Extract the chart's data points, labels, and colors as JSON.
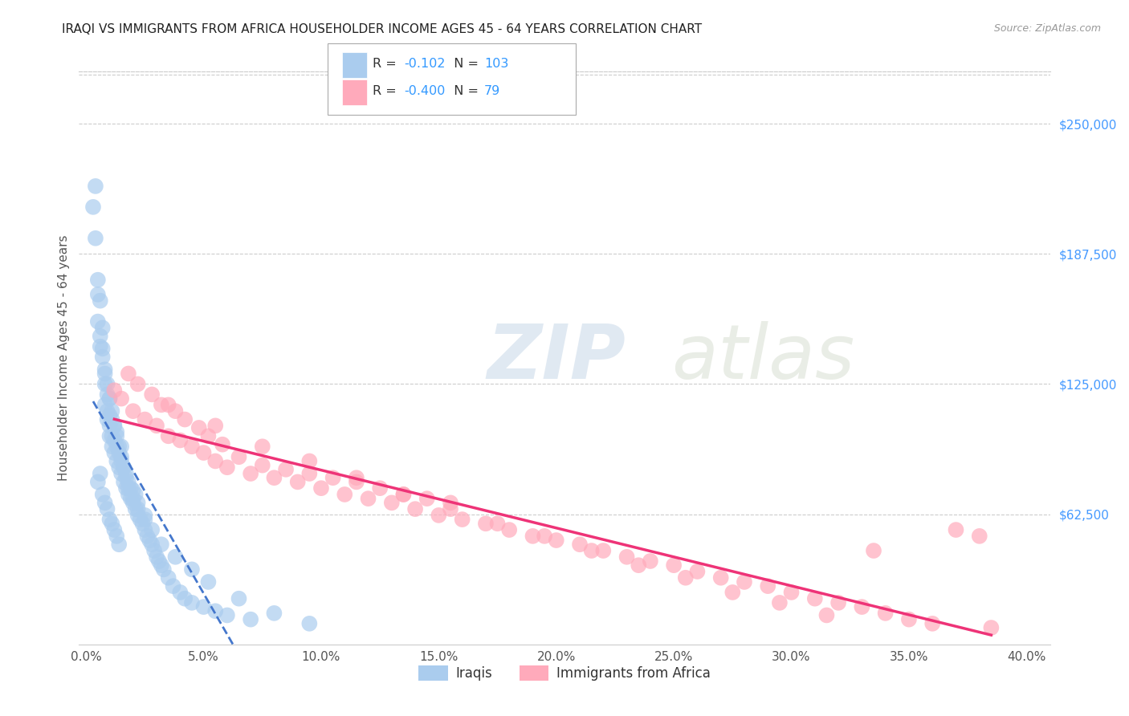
{
  "title": "IRAQI VS IMMIGRANTS FROM AFRICA HOUSEHOLDER INCOME AGES 45 - 64 YEARS CORRELATION CHART",
  "source": "Source: ZipAtlas.com",
  "ylabel": "Householder Income Ages 45 - 64 years",
  "ylabel_ticks": [
    "$62,500",
    "$125,000",
    "$187,500",
    "$250,000"
  ],
  "ylabel_vals": [
    62500,
    125000,
    187500,
    250000
  ],
  "ylim": [
    0,
    275000
  ],
  "xlim": [
    -0.3,
    41
  ],
  "xlabel_vals": [
    0.0,
    5.0,
    10.0,
    15.0,
    20.0,
    25.0,
    30.0,
    35.0,
    40.0
  ],
  "legend_labels": [
    "Iraqis",
    "Immigrants from Africa"
  ],
  "iraqis_color": "#aaccee",
  "africa_color": "#ffaabb",
  "iraqis_line_color": "#4477cc",
  "africa_line_color": "#ee3377",
  "iraqis_R": "-0.102",
  "iraqis_N": "103",
  "africa_R": "-0.400",
  "africa_N": "79",
  "iraqis_x": [
    0.3,
    0.4,
    0.4,
    0.5,
    0.5,
    0.5,
    0.6,
    0.6,
    0.6,
    0.7,
    0.7,
    0.7,
    0.8,
    0.8,
    0.8,
    0.9,
    0.9,
    0.9,
    1.0,
    1.0,
    1.0,
    1.0,
    1.1,
    1.1,
    1.1,
    1.2,
    1.2,
    1.2,
    1.3,
    1.3,
    1.3,
    1.4,
    1.4,
    1.5,
    1.5,
    1.5,
    1.6,
    1.6,
    1.7,
    1.7,
    1.8,
    1.8,
    1.9,
    1.9,
    2.0,
    2.0,
    2.1,
    2.1,
    2.2,
    2.2,
    2.3,
    2.4,
    2.5,
    2.5,
    2.6,
    2.7,
    2.8,
    2.9,
    3.0,
    3.1,
    3.2,
    3.3,
    3.5,
    3.7,
    4.0,
    4.2,
    4.5,
    5.0,
    5.5,
    6.0,
    7.0,
    0.5,
    0.6,
    0.7,
    0.8,
    0.9,
    1.0,
    1.1,
    1.2,
    1.3,
    1.4,
    0.8,
    0.9,
    1.0,
    1.1,
    1.2,
    1.3,
    1.4,
    1.5,
    1.6,
    1.7,
    1.8,
    2.0,
    2.2,
    2.5,
    2.8,
    3.2,
    3.8,
    4.5,
    5.2,
    6.5,
    8.0,
    9.5
  ],
  "iraqis_y": [
    210000,
    220000,
    195000,
    175000,
    168000,
    155000,
    148000,
    165000,
    143000,
    138000,
    142000,
    152000,
    115000,
    125000,
    132000,
    108000,
    112000,
    120000,
    100000,
    105000,
    110000,
    118000,
    95000,
    100000,
    108000,
    92000,
    98000,
    105000,
    88000,
    95000,
    102000,
    85000,
    92000,
    82000,
    88000,
    95000,
    78000,
    85000,
    75000,
    82000,
    72000,
    78000,
    70000,
    75000,
    68000,
    74000,
    65000,
    72000,
    62000,
    68000,
    60000,
    58000,
    55000,
    62000,
    52000,
    50000,
    48000,
    45000,
    42000,
    40000,
    38000,
    36000,
    32000,
    28000,
    25000,
    22000,
    20000,
    18000,
    16000,
    14000,
    12000,
    78000,
    82000,
    72000,
    68000,
    65000,
    60000,
    58000,
    55000,
    52000,
    48000,
    130000,
    125000,
    118000,
    112000,
    105000,
    100000,
    95000,
    90000,
    85000,
    80000,
    75000,
    70000,
    65000,
    60000,
    55000,
    48000,
    42000,
    36000,
    30000,
    22000,
    15000,
    10000
  ],
  "africa_x": [
    1.2,
    1.5,
    1.8,
    2.0,
    2.2,
    2.5,
    2.8,
    3.0,
    3.2,
    3.5,
    3.8,
    4.0,
    4.2,
    4.5,
    4.8,
    5.0,
    5.2,
    5.5,
    5.8,
    6.0,
    6.5,
    7.0,
    7.5,
    8.0,
    8.5,
    9.0,
    9.5,
    10.0,
    10.5,
    11.0,
    11.5,
    12.0,
    12.5,
    13.0,
    13.5,
    14.0,
    14.5,
    15.0,
    15.5,
    16.0,
    17.0,
    18.0,
    19.0,
    20.0,
    21.0,
    22.0,
    23.0,
    24.0,
    25.0,
    26.0,
    27.0,
    28.0,
    29.0,
    30.0,
    31.0,
    32.0,
    33.0,
    34.0,
    35.0,
    36.0,
    37.0,
    38.0,
    3.5,
    5.5,
    7.5,
    9.5,
    11.5,
    13.5,
    15.5,
    17.5,
    19.5,
    21.5,
    23.5,
    25.5,
    27.5,
    29.5,
    31.5,
    33.5,
    38.5
  ],
  "africa_y": [
    122000,
    118000,
    130000,
    112000,
    125000,
    108000,
    120000,
    105000,
    115000,
    100000,
    112000,
    98000,
    108000,
    95000,
    104000,
    92000,
    100000,
    88000,
    96000,
    85000,
    90000,
    82000,
    86000,
    80000,
    84000,
    78000,
    82000,
    75000,
    80000,
    72000,
    78000,
    70000,
    75000,
    68000,
    72000,
    65000,
    70000,
    62000,
    68000,
    60000,
    58000,
    55000,
    52000,
    50000,
    48000,
    45000,
    42000,
    40000,
    38000,
    35000,
    32000,
    30000,
    28000,
    25000,
    22000,
    20000,
    18000,
    15000,
    12000,
    10000,
    55000,
    52000,
    115000,
    105000,
    95000,
    88000,
    80000,
    72000,
    65000,
    58000,
    52000,
    45000,
    38000,
    32000,
    25000,
    20000,
    14000,
    45000,
    8000
  ],
  "watermark_zip": "ZIP",
  "watermark_atlas": "atlas",
  "background_color": "#ffffff",
  "grid_color": "#cccccc",
  "title_color": "#222222",
  "source_color": "#999999",
  "tick_color": "#555555",
  "ytick_color": "#4499ff"
}
